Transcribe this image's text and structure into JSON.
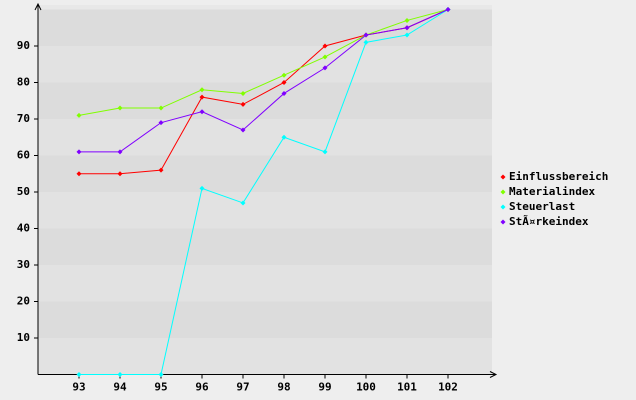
{
  "chart_data": {
    "type": "line",
    "categories": [
      "93",
      "94",
      "95",
      "96",
      "97",
      "98",
      "99",
      "100",
      "101",
      "102"
    ],
    "series": [
      {
        "name": "Einflussbereich",
        "color": "#ff0000",
        "values": [
          55,
          55,
          56,
          76,
          74,
          80,
          90,
          93,
          95,
          100
        ]
      },
      {
        "name": "Materialindex",
        "color": "#80ff00",
        "values": [
          71,
          73,
          73,
          78,
          77,
          82,
          87,
          93,
          97,
          100
        ]
      },
      {
        "name": "Steuerlast",
        "color": "#00ffff",
        "values": [
          0,
          0,
          0,
          51,
          47,
          65,
          61,
          91,
          93,
          100
        ]
      },
      {
        "name": "StÃ¤rkeindex",
        "color": "#8000ff",
        "values": [
          61,
          61,
          69,
          72,
          67,
          77,
          84,
          93,
          95,
          100
        ]
      }
    ],
    "ylim": [
      0,
      100
    ],
    "yticks": [
      10,
      20,
      30,
      40,
      50,
      60,
      70,
      80,
      90
    ],
    "grid": true,
    "legend": "right"
  }
}
